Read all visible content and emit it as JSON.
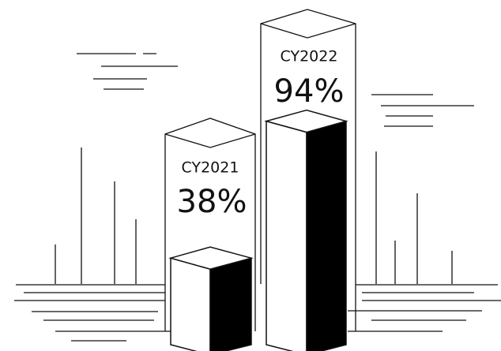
{
  "chart_data": {
    "type": "bar",
    "categories": [
      "CY2021",
      "CY2022"
    ],
    "values": [
      38,
      94
    ],
    "value_labels": [
      "38%",
      "94%"
    ],
    "color": "#000000"
  }
}
